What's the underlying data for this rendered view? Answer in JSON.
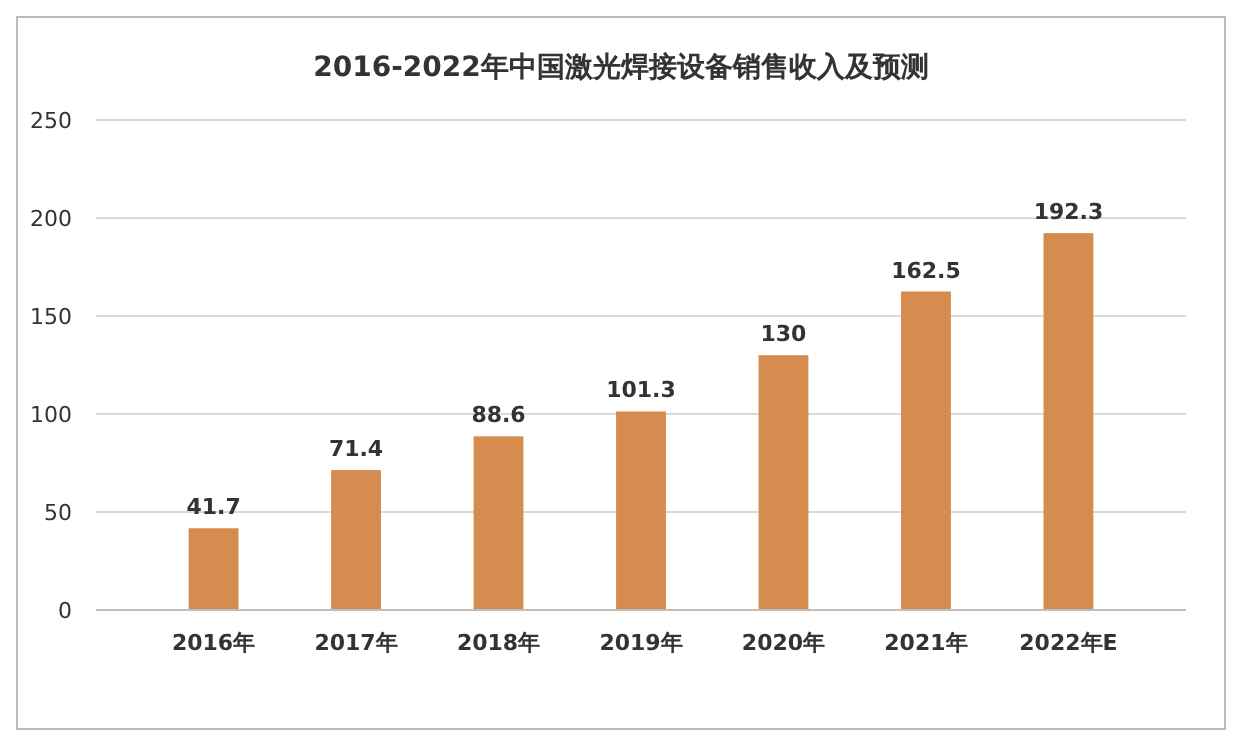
{
  "chart_data": {
    "type": "bar",
    "title": "2016-2022年中国激光焊接设备销售收入及预测",
    "categories": [
      "2016年",
      "2017年",
      "2018年",
      "2019年",
      "2020年",
      "2021年",
      "2022年E"
    ],
    "values": [
      41.7,
      71.4,
      88.6,
      101.3,
      130,
      162.5,
      192.3
    ],
    "color": "#d68c4f",
    "ylim": [
      0,
      250
    ],
    "yticks": [
      0,
      50,
      100,
      150,
      200,
      250
    ],
    "grid": "y",
    "data_labels": true
  }
}
